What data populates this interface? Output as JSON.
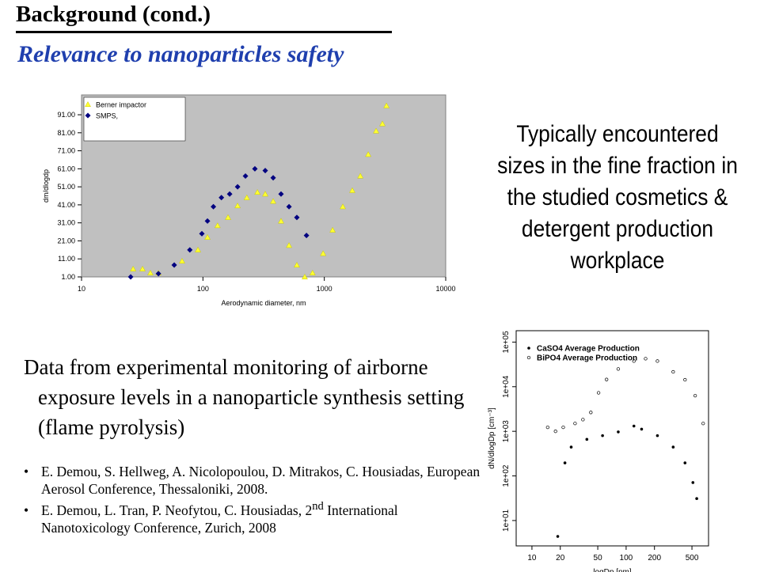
{
  "title": "Background (cond.)",
  "subtitle": "Relevance to nanoparticles safety",
  "note_right": "Typically encountered sizes in the fine fraction in the studied cosmetics & detergent production workplace",
  "note_left": "Data from experimental monitoring of airborne exposure levels in a nanoparticle synthesis setting (flame pyrolysis)",
  "references": [
    {
      "text": "E. Demou, S. Hellweg, A. Nicolopoulou, D. Mitrakos, C. Housiadas, European Aerosol Conference, Thessaloniki, 2008."
    },
    {
      "text": "E. Demou, L. Tran, P. Neofytou, C. Housiadas, 2",
      "sup": "nd",
      "rest": " International Nanotoxicology Conference, Zurich, 2008"
    }
  ],
  "chart_data": [
    {
      "type": "scatter",
      "xlabel": "Aerodynamic diameter, nm",
      "ylabel": "dm/dlogdp",
      "xscale": "log",
      "xlim": [
        10,
        10000
      ],
      "ylim": [
        1,
        102
      ],
      "xticks": [
        10,
        100,
        1000,
        10000
      ],
      "yticks": [
        {
          "value": 1,
          "label": "1.00"
        },
        {
          "value": 11,
          "label": "11.00"
        },
        {
          "value": 21,
          "label": "21.00"
        },
        {
          "value": 31,
          "label": "31.00"
        },
        {
          "value": 41,
          "label": "41.00"
        },
        {
          "value": 51,
          "label": "51.00"
        },
        {
          "value": 61,
          "label": "61.00"
        },
        {
          "value": 71,
          "label": "71.00"
        },
        {
          "value": 81,
          "label": "81.00"
        },
        {
          "value": 91,
          "label": "91.00"
        }
      ],
      "background": "#c0c0c0",
      "legend": "upper-left",
      "series": [
        {
          "name": "Berner impactor",
          "color": "#ffff33",
          "marker": "triangle",
          "x": [
            26.6,
            31.8,
            36.9,
            43,
            67.3,
            91,
            109,
            132,
            161,
            193,
            230,
            281,
            326,
            379,
            440,
            512,
            594,
            690,
            800,
            978,
            1170,
            1420,
            1700,
            1980,
            2300,
            2670,
            3010,
            3250
          ],
          "values": [
            5.4,
            5.4,
            3.2,
            3.2,
            9.8,
            16,
            23,
            29.5,
            34,
            40.5,
            45,
            48,
            47,
            43,
            32,
            18.5,
            7.6,
            1,
            3.2,
            14,
            27,
            40,
            49,
            57,
            69,
            82,
            86,
            96
          ]
        },
        {
          "name": "SMPS,",
          "color": "#000080",
          "marker": "diamond",
          "x": [
            25.4,
            43,
            58,
            78,
            98,
            109,
            122,
            142,
            166,
            193,
            224,
            268,
            326,
            379,
            440,
            512,
            594,
            713
          ],
          "values": [
            1,
            2.8,
            7.6,
            16,
            25,
            32,
            40,
            45,
            47,
            51,
            57,
            61,
            60,
            56,
            47,
            40,
            34,
            24
          ]
        }
      ]
    },
    {
      "type": "scatter",
      "xlabel": "logDp [nm]",
      "ylabel": "dN/dlogDp [cm⁻³]",
      "xscale": "log",
      "yscale": "log",
      "xlim": [
        6.8,
        750
      ],
      "ylim": [
        2.7,
        180000
      ],
      "xticks": [
        10,
        20,
        50,
        100,
        200,
        500
      ],
      "yticks": [
        {
          "value": 10,
          "label": "1e+01"
        },
        {
          "value": 100,
          "label": "1e+02"
        },
        {
          "value": 1000,
          "label": "1e+03"
        },
        {
          "value": 10000,
          "label": "1e+04"
        },
        {
          "value": 100000,
          "label": "1e+05"
        }
      ],
      "background": "#ffffff",
      "legend": "upper-left",
      "series": [
        {
          "name": "CaSO4 Average Production",
          "color": "#000000",
          "marker": "filled-circle",
          "x": [
            18.8,
            22.4,
            26.1,
            38.3,
            56.2,
            82.5,
            121,
            146,
            215,
            316,
            422,
            512,
            562
          ],
          "values": [
            4.4,
            196,
            443,
            660,
            800,
            970,
            1310,
            1120,
            800,
            443,
            196,
            71,
            31
          ]
        },
        {
          "name": "BiPO4 Average Production",
          "color": "#000000",
          "marker": "open-circle",
          "x": [
            14.7,
            17.8,
            21.5,
            28.7,
            34.8,
            42.2,
            51,
            62,
            82.5,
            121,
            161,
            215,
            316,
            422,
            541,
            658
          ],
          "values": [
            1230,
            1000,
            1230,
            1500,
            1830,
            2650,
            7300,
            14500,
            25000,
            37500,
            42500,
            37500,
            21500,
            14300,
            6300,
            1500
          ]
        }
      ]
    }
  ]
}
